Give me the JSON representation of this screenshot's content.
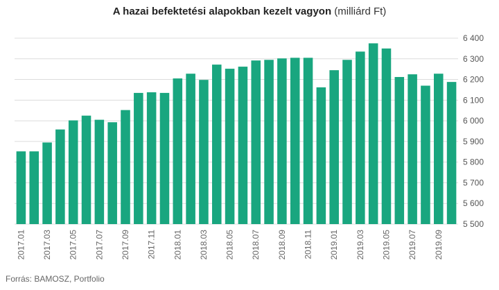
{
  "chart_data": {
    "type": "bar",
    "title": "A hazai befektetési alapokban kezelt vagyon",
    "subtitle": "(milliárd Ft)",
    "xlabel": "",
    "ylabel": "",
    "ylim": [
      5500,
      6400
    ],
    "yticks": [
      "5 500",
      "5 600",
      "5 700",
      "5 800",
      "5 900",
      "6 000",
      "6 100",
      "6 200",
      "6 300",
      "6 400"
    ],
    "grid": true,
    "bar_color": "#19a67f",
    "categories": [
      "2017.01",
      "2017.02",
      "2017.03",
      "2017.04",
      "2017.05",
      "2017.06",
      "2017.07",
      "2017.08",
      "2017.09",
      "2017.10",
      "2017.11",
      "2017.12",
      "2018.01",
      "2018.02",
      "2018.03",
      "2018.04",
      "2018.05",
      "2018.06",
      "2018.07",
      "2018.08",
      "2018.09",
      "2018.10",
      "2018.11",
      "2018.12",
      "2019.01",
      "2019.02",
      "2019.03",
      "2019.04",
      "2019.05",
      "2019.06",
      "2019.07",
      "2019.08",
      "2019.09",
      "2019.10"
    ],
    "tick_labels": [
      "2017.01",
      "",
      "2017.03",
      "",
      "2017.05",
      "",
      "2017.07",
      "",
      "2017.09",
      "",
      "2017.11",
      "",
      "2018.01",
      "",
      "2018.03",
      "",
      "2018.05",
      "",
      "2018.07",
      "",
      "2018.09",
      "",
      "2018.11",
      "",
      "2019.01",
      "",
      "2019.03",
      "",
      "2019.05",
      "",
      "2019.07",
      "",
      "2019.09",
      ""
    ],
    "values": [
      5852,
      5852,
      5895,
      5958,
      6002,
      6025,
      6005,
      5993,
      6052,
      6135,
      6138,
      6135,
      6205,
      6228,
      6198,
      6272,
      6252,
      6262,
      6292,
      6295,
      6302,
      6305,
      6305,
      6162,
      6245,
      6295,
      6335,
      6375,
      6350,
      6212,
      6225,
      6170,
      6228,
      6188
    ]
  },
  "source": "Forrás: BAMOSZ,  Portfolio"
}
